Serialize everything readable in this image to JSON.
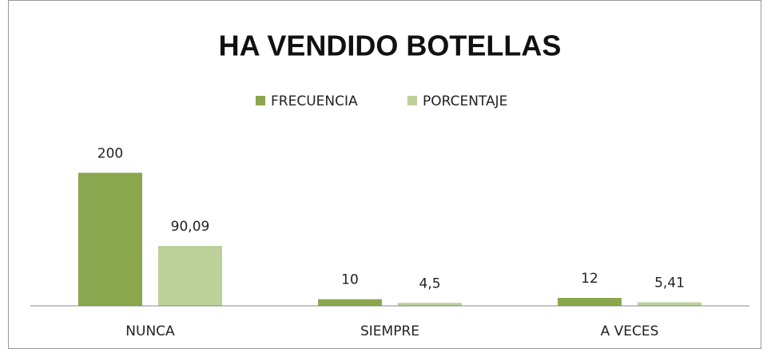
{
  "chart_data": {
    "type": "bar",
    "title": "HA VENDIDO BOTELLAS",
    "categories": [
      "NUNCA",
      "SIEMPRE",
      "A VECES"
    ],
    "series": [
      {
        "name": "FRECUENCIA",
        "color": "#8aa64e",
        "values": [
          200,
          10,
          12
        ]
      },
      {
        "name": "PORCENTAJE",
        "color": "#bcd19a",
        "values": [
          90.09,
          4.5,
          5.41
        ],
        "value_labels": [
          "90,09",
          "4,5",
          "5,41"
        ]
      }
    ],
    "ylim": [
      0,
      240
    ],
    "legend": "top"
  }
}
